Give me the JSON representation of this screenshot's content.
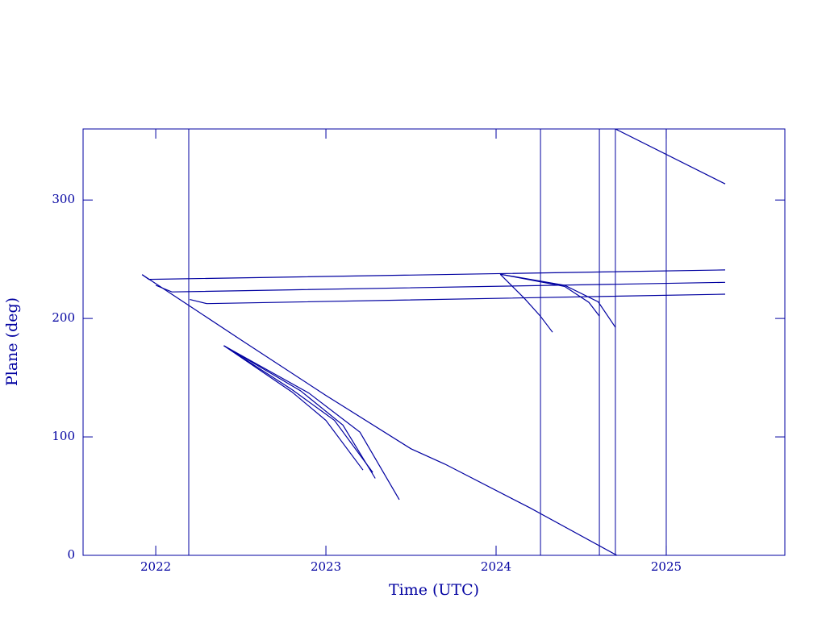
{
  "chart_data": {
    "type": "line",
    "xlabel": "Time (UTC)",
    "ylabel": "Plane (deg)",
    "xlim": [
      2021.573,
      2025.697
    ],
    "ylim": [
      0,
      360
    ],
    "xticks": [
      2022,
      2023,
      2024,
      2025
    ],
    "yticks": [
      0,
      100,
      200,
      300
    ],
    "color": "#0000a0",
    "vlines": [
      2022.194,
      2024.261,
      2024.607,
      2024.701,
      2025.0
    ],
    "series": [
      {
        "x": [
          2021.92,
          2022.5,
          2023.0,
          2023.5,
          2023.7,
          2024.2,
          2024.71
        ],
        "values": [
          237,
          182,
          135,
          90,
          77,
          40,
          0
        ]
      },
      {
        "x": [
          2021.92,
          2021.96,
          2025.346
        ],
        "values": [
          237,
          233,
          241
        ]
      },
      {
        "x": [
          2022.0,
          2022.095,
          2025.346
        ],
        "values": [
          228,
          222.4,
          230.5
        ]
      },
      {
        "x": [
          2022.2,
          2022.3,
          2025.346
        ],
        "values": [
          216,
          212.5,
          220.5
        ]
      },
      {
        "x": [
          2024.024,
          2024.166,
          2024.26,
          2024.332
        ],
        "values": [
          237.4,
          217,
          202,
          188.4
        ]
      },
      {
        "x": [
          2024.024,
          2024.403,
          2024.545,
          2024.607
        ],
        "values": [
          237.4,
          227,
          213.6,
          202
        ]
      },
      {
        "x": [
          2024.024,
          2024.403,
          2024.6,
          2024.701
        ],
        "values": [
          237.4,
          228,
          214,
          192.5
        ]
      },
      {
        "x": [
          2024.701,
          2025.346
        ],
        "values": [
          360,
          313.6
        ]
      },
      {
        "x": [
          2022.4,
          2022.8,
          2023.0,
          2023.218
        ],
        "values": [
          177,
          138,
          114,
          72
        ]
      },
      {
        "x": [
          2022.4,
          2022.8,
          2023.05,
          2023.275
        ],
        "values": [
          177,
          140,
          114,
          70
        ]
      },
      {
        "x": [
          2022.4,
          2022.85,
          2023.1,
          2023.29
        ],
        "values": [
          177,
          139,
          110,
          65
        ]
      },
      {
        "x": [
          2022.4,
          2022.9,
          2023.2,
          2023.431
        ],
        "values": [
          177,
          137,
          104,
          47
        ]
      }
    ]
  }
}
